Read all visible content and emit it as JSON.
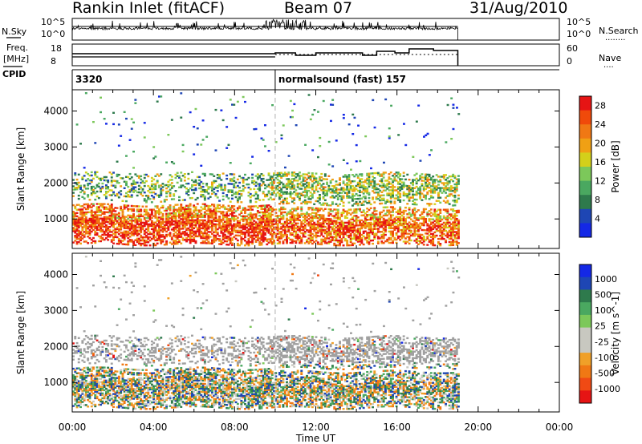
{
  "header": {
    "station": "Rankin Inlet (fitACF)",
    "beam": "Beam 07",
    "date": "31/Aug/2010"
  },
  "top_panels": {
    "noise": {
      "label": "N.Sky",
      "right_label": "N.Search",
      "ticks_left": [
        "10^5",
        "10^0"
      ],
      "ticks_right": [
        "10^5",
        "10^0"
      ],
      "right_dots": "........"
    },
    "freq": {
      "label_line1": "Freq.",
      "label_line2": "[MHz]",
      "ticks_left": [
        "18",
        "8"
      ],
      "right_label": "Nave",
      "ticks_right": [
        "60",
        "0"
      ],
      "right_dots": "...."
    },
    "cpid": {
      "label": "CPID",
      "segments": [
        {
          "start_h": 0,
          "text": "3320"
        },
        {
          "start_h": 10,
          "text": "normalsound (fast) 157"
        }
      ]
    }
  },
  "colors": {
    "power_scale": [
      "#1428e6",
      "#1e46b4",
      "#2e7a4c",
      "#4aa860",
      "#7cc85a",
      "#d4d01a",
      "#f0a014",
      "#f07814",
      "#f04a0a",
      "#e61414"
    ],
    "velocity_scale": [
      "#e61414",
      "#f04a14",
      "#f07814",
      "#f0a028",
      "#c8c8c0",
      "#c8c8c0",
      "#7cc85a",
      "#4aa860",
      "#2e7a4c",
      "#1e46b4",
      "#1428e6"
    ],
    "ground_scatter": "#a0a0a0"
  },
  "chart_data": [
    {
      "type": "heatmap",
      "panel": "power",
      "xlabel": "",
      "ylabel": "Slant Range [km]",
      "xlim": [
        0,
        24
      ],
      "ylim": [
        180,
        4590
      ],
      "yticks": [
        1000,
        2000,
        3000,
        4000
      ],
      "data_end_h": 19,
      "colorbar": {
        "label": "Power [dB]",
        "ticks": [
          "4",
          "8",
          "12",
          "16",
          "20",
          "24",
          "28"
        ],
        "range": [
          0,
          30
        ]
      }
    },
    {
      "type": "heatmap",
      "panel": "velocity",
      "xlabel": "Time UT",
      "ylabel": "Slant Range [km]",
      "xlim": [
        0,
        24
      ],
      "ylim": [
        180,
        4590
      ],
      "xticks": [
        "00:00",
        "04:00",
        "08:00",
        "12:00",
        "16:00",
        "20:00",
        "00:00"
      ],
      "yticks": [
        1000,
        2000,
        3000,
        4000
      ],
      "data_end_h": 19,
      "colorbar": {
        "label": "Velocity [m s^-1]",
        "ticks": [
          "1000",
          "500",
          "100",
          "25",
          "-25",
          "-100",
          "-500",
          "-1000"
        ]
      }
    }
  ]
}
